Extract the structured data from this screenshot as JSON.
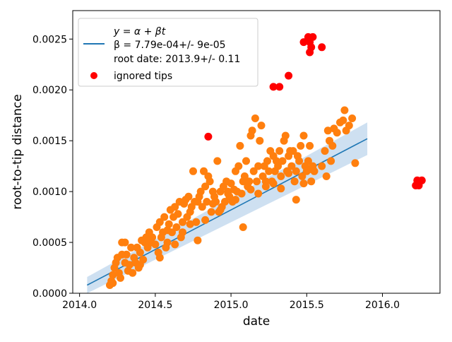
{
  "chart_data": {
    "type": "scatter",
    "xlabel": "date",
    "ylabel": "root-to-tip distance",
    "xlim": [
      2013.955,
      2016.38
    ],
    "ylim": [
      0,
      0.00278
    ],
    "xticks": [
      2014.0,
      2014.5,
      2015.0,
      2015.5,
      2016.0
    ],
    "xtick_labels": [
      "2014.0",
      "2014.5",
      "2015.0",
      "2015.5",
      "2016.0"
    ],
    "yticks": [
      0,
      0.0005,
      0.001,
      0.0015,
      0.002,
      0.0025
    ],
    "ytick_labels": [
      "0.0000",
      "0.0005",
      "0.0010",
      "0.0015",
      "0.0020",
      "0.0025"
    ],
    "grid": false,
    "legend_position": "top-left",
    "colors": {
      "fit": "#1f77b4",
      "band": "#c6dbef",
      "tips": "#ff7f0e",
      "ignored": "#ff0000"
    },
    "regression": {
      "legend_lines": [
        "y = α + βt",
        "β = 7.79e-04+/- 9e-05",
        "root date: 2013.9+/- 0.11"
      ],
      "x_start": 2014.05,
      "y_start": 8e-05,
      "x_end": 2015.9,
      "y_end": 0.00152,
      "band_halfwidth_start": 8e-05,
      "band_halfwidth_end": 0.00016
    },
    "series": [
      {
        "name": "",
        "kind": "points",
        "points": [
          [
            2014.2,
            8e-05
          ],
          [
            2014.21,
            0.00012
          ],
          [
            2014.22,
            0.00018
          ],
          [
            2014.23,
            0.00025
          ],
          [
            2014.24,
            0.0003
          ],
          [
            2014.25,
            0.00035
          ],
          [
            2014.26,
            0.0002
          ],
          [
            2014.27,
            0.00015
          ],
          [
            2014.28,
            0.0005
          ],
          [
            2014.3,
            0.0005
          ],
          [
            2014.3,
            0.0003
          ],
          [
            2014.31,
            0.00038
          ],
          [
            2014.32,
            0.00022
          ],
          [
            2014.33,
            0.00028
          ],
          [
            2014.35,
            0.0002
          ],
          [
            2014.36,
            0.00035
          ],
          [
            2014.37,
            0.0003
          ],
          [
            2014.38,
            0.00045
          ],
          [
            2014.39,
            0.00025
          ],
          [
            2014.4,
            0.0004
          ],
          [
            2014.41,
            0.00052
          ],
          [
            2014.42,
            0.00033
          ],
          [
            2014.43,
            0.0005
          ],
          [
            2014.44,
            0.00055
          ],
          [
            2014.45,
            0.00045
          ],
          [
            2014.46,
            0.0006
          ],
          [
            2014.47,
            0.0005
          ],
          [
            2014.48,
            0.00055
          ],
          [
            2014.5,
            0.00048
          ],
          [
            2014.51,
            0.00065
          ],
          [
            2014.52,
            0.0004
          ],
          [
            2014.53,
            0.0007
          ],
          [
            2014.54,
            0.00055
          ],
          [
            2014.55,
            0.0006
          ],
          [
            2014.56,
            0.00075
          ],
          [
            2014.57,
            0.00045
          ],
          [
            2014.58,
            0.0005
          ],
          [
            2014.59,
            0.00068
          ],
          [
            2014.6,
            0.00082
          ],
          [
            2014.61,
            0.0006
          ],
          [
            2014.62,
            0.00075
          ],
          [
            2014.63,
            0.00085
          ],
          [
            2014.64,
            0.00065
          ],
          [
            2014.65,
            0.00078
          ],
          [
            2014.66,
            0.0009
          ],
          [
            2014.67,
            0.00055
          ],
          [
            2014.68,
            0.0007
          ],
          [
            2014.69,
            0.00088
          ],
          [
            2014.7,
            0.00092
          ],
          [
            2014.71,
            0.00075
          ],
          [
            2014.72,
            0.00095
          ],
          [
            2014.73,
            0.0008
          ],
          [
            2014.74,
            0.00085
          ],
          [
            2014.75,
            0.0012
          ],
          [
            2014.76,
            0.0009
          ],
          [
            2014.77,
            0.0007
          ],
          [
            2014.78,
            0.0009
          ],
          [
            2014.79,
            0.00095
          ],
          [
            2014.8,
            0.001
          ],
          [
            2014.81,
            0.00085
          ],
          [
            2014.82,
            0.0012
          ],
          [
            2014.83,
            0.00105
          ],
          [
            2014.84,
            0.0009
          ],
          [
            2014.85,
            0.00115
          ],
          [
            2014.86,
            0.0011
          ],
          [
            2014.87,
            0.0008
          ],
          [
            2014.88,
            0.001
          ],
          [
            2014.89,
            0.00095
          ],
          [
            2014.9,
            0.0009
          ],
          [
            2014.91,
            0.0013
          ],
          [
            2014.92,
            0.0008
          ],
          [
            2014.93,
            0.001
          ],
          [
            2014.94,
            0.00085
          ],
          [
            2014.95,
            0.00105
          ],
          [
            2014.96,
            0.0009
          ],
          [
            2014.97,
            0.0011
          ],
          [
            2014.98,
            0.001
          ],
          [
            2014.99,
            0.00095
          ],
          [
            2015.0,
            0.00108
          ],
          [
            2015.01,
            0.0009
          ],
          [
            2015.02,
            0.00102
          ],
          [
            2015.03,
            0.0012
          ],
          [
            2015.04,
            0.001
          ],
          [
            2015.05,
            0.00125
          ],
          [
            2015.06,
            0.00145
          ],
          [
            2015.07,
            0.00098
          ],
          [
            2015.08,
            0.0011
          ],
          [
            2015.09,
            0.00115
          ],
          [
            2015.1,
            0.0013
          ],
          [
            2015.11,
            0.00105
          ],
          [
            2015.12,
            0.0011
          ],
          [
            2015.13,
            0.00155
          ],
          [
            2015.14,
            0.0016
          ],
          [
            2015.15,
            0.0012
          ],
          [
            2015.16,
            0.00172
          ],
          [
            2015.17,
            0.0011
          ],
          [
            2015.18,
            0.00125
          ],
          [
            2015.19,
            0.0015
          ],
          [
            2015.2,
            0.00165
          ],
          [
            2015.21,
            0.00115
          ],
          [
            2015.22,
            0.00125
          ],
          [
            2015.23,
            0.0011
          ],
          [
            2015.24,
            0.0013
          ],
          [
            2015.25,
            0.0012
          ],
          [
            2015.26,
            0.0014
          ],
          [
            2015.27,
            0.0011
          ],
          [
            2015.28,
            0.00135
          ],
          [
            2015.29,
            0.0012
          ],
          [
            2015.3,
            0.0013
          ],
          [
            2015.31,
            0.00125
          ],
          [
            2015.32,
            0.0014
          ],
          [
            2015.33,
            0.00115
          ],
          [
            2015.34,
            0.0013
          ],
          [
            2015.35,
            0.0015
          ],
          [
            2015.36,
            0.00155
          ],
          [
            2015.37,
            0.0012
          ],
          [
            2015.38,
            0.00135
          ],
          [
            2015.39,
            0.0014
          ],
          [
            2015.4,
            0.00125
          ],
          [
            2015.41,
            0.0014
          ],
          [
            2015.42,
            0.0011
          ],
          [
            2015.43,
            0.0012
          ],
          [
            2015.44,
            0.00135
          ],
          [
            2015.45,
            0.0013
          ],
          [
            2015.46,
            0.00145
          ],
          [
            2015.47,
            0.00115
          ],
          [
            2015.48,
            0.00155
          ],
          [
            2015.49,
            0.00125
          ],
          [
            2015.5,
            0.0012
          ],
          [
            2015.51,
            0.0013
          ],
          [
            2015.52,
            0.00145
          ],
          [
            2015.53,
            0.0011
          ],
          [
            2015.54,
            0.00125
          ],
          [
            2015.55,
            0.0012
          ],
          [
            2015.6,
            0.00125
          ],
          [
            2015.62,
            0.0014
          ],
          [
            2015.63,
            0.00115
          ],
          [
            2015.64,
            0.0016
          ],
          [
            2015.65,
            0.0015
          ],
          [
            2015.66,
            0.0013
          ],
          [
            2015.67,
            0.00145
          ],
          [
            2015.68,
            0.00162
          ],
          [
            2015.7,
            0.00158
          ],
          [
            2015.72,
            0.00168
          ],
          [
            2015.74,
            0.0017
          ],
          [
            2015.75,
            0.0018
          ],
          [
            2015.76,
            0.0016
          ],
          [
            2015.78,
            0.00165
          ],
          [
            2015.8,
            0.00172
          ],
          [
            2015.82,
            0.00128
          ],
          [
            2014.22,
            0.0001
          ],
          [
            2014.28,
            0.00038
          ],
          [
            2014.34,
            0.00045
          ],
          [
            2014.4,
            0.00028
          ],
          [
            2014.46,
            0.00052
          ],
          [
            2014.53,
            0.00035
          ],
          [
            2014.58,
            0.00062
          ],
          [
            2014.63,
            0.00048
          ],
          [
            2014.68,
            0.0006
          ],
          [
            2014.73,
            0.00068
          ],
          [
            2014.78,
            0.00052
          ],
          [
            2014.83,
            0.00072
          ],
          [
            2014.88,
            0.00088
          ],
          [
            2014.93,
            0.00082
          ],
          [
            2014.98,
            0.00098
          ],
          [
            2015.03,
            0.00092
          ],
          [
            2015.08,
            0.00065
          ],
          [
            2015.13,
            0.00102
          ],
          [
            2015.18,
            0.00098
          ],
          [
            2015.23,
            0.00105
          ],
          [
            2015.28,
            0.00108
          ],
          [
            2015.33,
            0.00103
          ],
          [
            2015.38,
            0.00118
          ],
          [
            2015.43,
            0.00092
          ],
          [
            2015.48,
            0.00108
          ],
          [
            2015.53,
            0.00122
          ]
        ]
      },
      {
        "name": "ignored tips",
        "kind": "points",
        "points": [
          [
            2014.85,
            0.00154
          ],
          [
            2015.28,
            0.00203
          ],
          [
            2015.32,
            0.00203
          ],
          [
            2015.38,
            0.00214
          ],
          [
            2015.48,
            0.00247
          ],
          [
            2015.51,
            0.00252
          ],
          [
            2015.52,
            0.00247
          ],
          [
            2015.53,
            0.00242
          ],
          [
            2015.52,
            0.00237
          ],
          [
            2015.54,
            0.00252
          ],
          [
            2015.6,
            0.00242
          ],
          [
            2016.22,
            0.00106
          ],
          [
            2016.23,
            0.00111
          ],
          [
            2016.24,
            0.00106
          ],
          [
            2016.26,
            0.00111
          ]
        ]
      }
    ]
  }
}
